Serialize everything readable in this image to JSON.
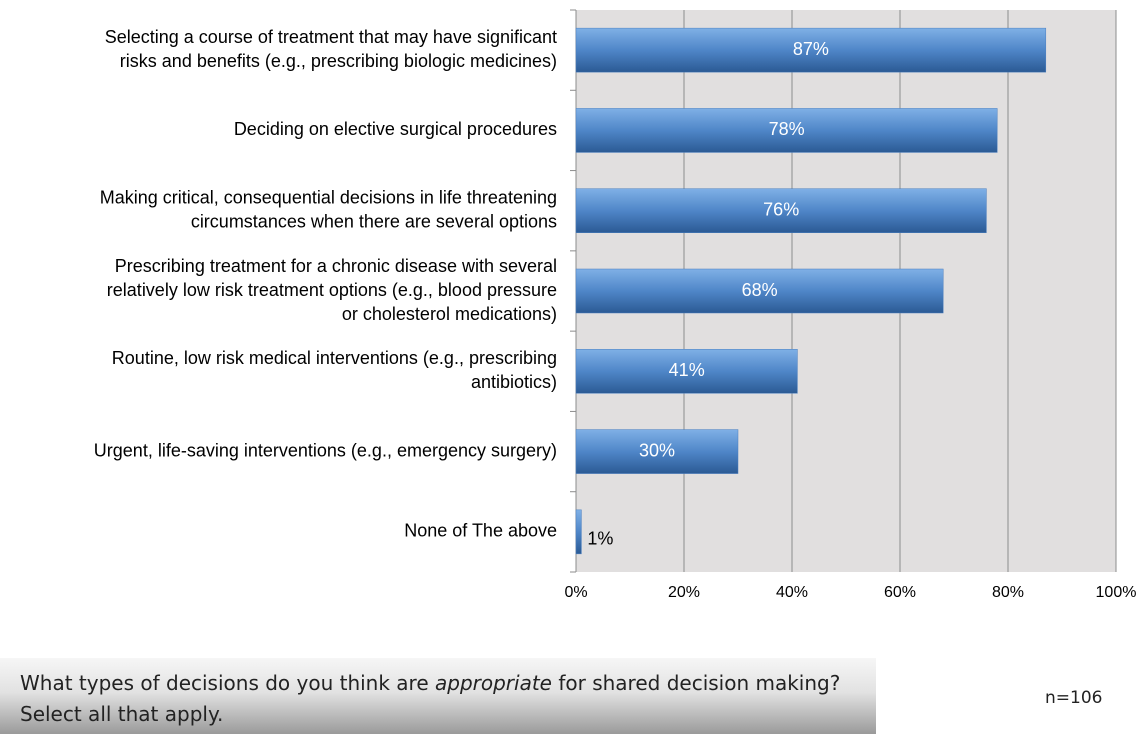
{
  "chart_data": {
    "type": "bar",
    "orientation": "horizontal",
    "categories": [
      [
        "Selecting a course of treatment that may have significant",
        "risks and benefits (e.g., prescribing biologic medicines)"
      ],
      [
        "Deciding on elective surgical procedures"
      ],
      [
        "Making critical, consequential decisions in life threatening",
        "circumstances  when there are several options"
      ],
      [
        "Prescribing treatment for a chronic disease with several",
        "relatively low risk treatment options (e.g., blood pressure",
        "or cholesterol medications)"
      ],
      [
        "Routine, low risk medical interventions (e.g., prescribing",
        "antibiotics)"
      ],
      [
        "Urgent, life-saving interventions (e.g., emergency surgery)"
      ],
      [
        "None of The above"
      ]
    ],
    "values": [
      87,
      78,
      76,
      68,
      41,
      30,
      1
    ],
    "value_labels": [
      "87%",
      "78%",
      "76%",
      "68%",
      "41%",
      "30%",
      "1%"
    ],
    "color": "#4a7fc0",
    "xlim": [
      0,
      100
    ],
    "xticks": [
      {
        "value": 0,
        "label": "0%"
      },
      {
        "value": 20,
        "label": "20%"
      },
      {
        "value": 40,
        "label": "40%"
      },
      {
        "value": 60,
        "label": "60%"
      },
      {
        "value": 80,
        "label": "80%"
      },
      {
        "value": 100,
        "label": "100%"
      }
    ],
    "grid": true
  },
  "question": [
    "What types of decisions do you think are ",
    "appropriate",
    " for shared decision making?",
    "Select all that apply."
  ],
  "note": "n=106"
}
